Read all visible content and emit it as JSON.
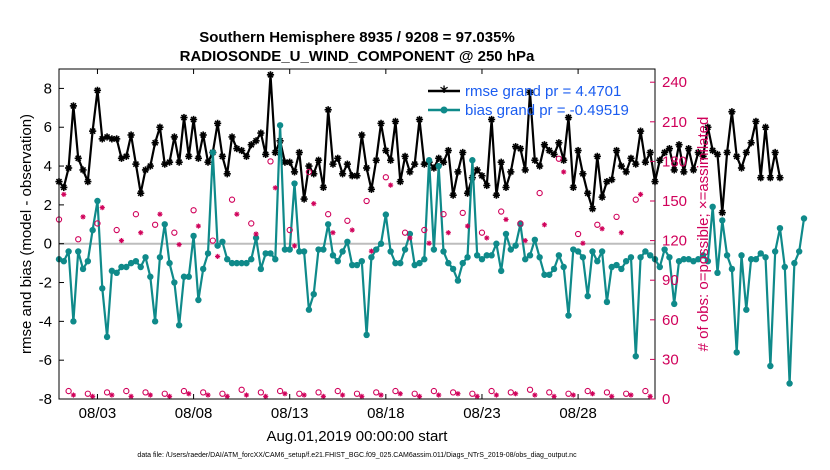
{
  "chart_data": {
    "type": "line",
    "title": "Southern Hemisphere 8935 / 9208 = 97.035%",
    "subtitle": "RADIOSONDE_U_WIND_COMPONENT @ 250 hPa",
    "xlabel": "Aug.01,2019 00:00:00 start",
    "ylabel": "rmse and bias (model - observation)",
    "ylabel_right": "# of obs: o=possible; ×=assimilated",
    "footnote": "data file: /Users/raeder/DAI/ATM_forcXX/CAM6_setup/f.e21.FHIST_BGC.f09_025.CAM6assim.011/Diags_NTrS_2019-08/obs_diag_output.nc",
    "xlim": [
      1.0,
      32.0
    ],
    "ylim": [
      -8,
      9
    ],
    "ylim_right": [
      0,
      250
    ],
    "y_ticks": [
      "8",
      "6",
      "4",
      "2",
      "0",
      "-2",
      "-4",
      "-6",
      "-8"
    ],
    "y_tick_values": [
      8,
      6,
      4,
      2,
      0,
      -2,
      -4,
      -6,
      -8
    ],
    "y_ticks_right": [
      "240",
      "210",
      "180",
      "150",
      "120",
      "90",
      "60",
      "30",
      "0"
    ],
    "y_tick_values_right": [
      240,
      210,
      180,
      150,
      120,
      90,
      60,
      30,
      0
    ],
    "x_ticks": [
      "08/03",
      "08/08",
      "08/13",
      "08/18",
      "08/23",
      "08/28"
    ],
    "x_tick_values": [
      3,
      8,
      13,
      18,
      23,
      28
    ],
    "legend": [
      "rmse grand pr = 4.4701",
      "bias grand pr = -0.49519"
    ],
    "legend_position": "top-right",
    "zero_line": 0,
    "series": [
      {
        "name": "rmse grand pr = 4.4701",
        "color": "#000000",
        "marker": "asterisk",
        "x_start": 1.0,
        "x_step": 0.25,
        "values": [
          3.2,
          2.9,
          3.9,
          7.1,
          4.4,
          3.8,
          3.2,
          5.8,
          7.9,
          5.4,
          5.5,
          5.4,
          5.4,
          4.4,
          4.5,
          5.6,
          4.1,
          2.6,
          3.8,
          4.0,
          5.2,
          6.0,
          4.1,
          4.2,
          5.5,
          4.2,
          6.5,
          4.5,
          6.4,
          4.4,
          5.6,
          4.2,
          4.7,
          6.2,
          4.5,
          3.6,
          5.5,
          4.9,
          4.8,
          4.5,
          5.1,
          5.3,
          5.7,
          4.6,
          8.7,
          4.7,
          5.3,
          4.2,
          4.2,
          3.7,
          4.7,
          2.3,
          4.0,
          3.6,
          4.3,
          2.9,
          6.9,
          4.1,
          4.4,
          3.6,
          4.1,
          3.5,
          3.5,
          5.6,
          3.9,
          2.8,
          4.3,
          6.2,
          4.8,
          4.3,
          6.3,
          3.2,
          4.5,
          3.7,
          4.1,
          6.4,
          4.1,
          4.2,
          3.9,
          4.4,
          4.2,
          4.8,
          2.5,
          3.7,
          4.7,
          2.6,
          3.4,
          3.8,
          3.5,
          3.0,
          6.4,
          2.5,
          4.2,
          2.9,
          3.7,
          5.0,
          4.9,
          3.8,
          7.8,
          4.3,
          4.0,
          5.1,
          4.8,
          4.6,
          5.2,
          4.3,
          6.5,
          2.9,
          4.8,
          3.6,
          2.6,
          1.8,
          4.5,
          2.4,
          3.2,
          3.3,
          4.8,
          4.0,
          3.7,
          4.4,
          4.1,
          5.8,
          4.2,
          4.7,
          3.2,
          4.3,
          4.7,
          4.9,
          3.8,
          5.1,
          3.7,
          4.9,
          3.8,
          4.7,
          4.5,
          6.0,
          4.8,
          4.6,
          1.6,
          4.7,
          6.8,
          4.5,
          3.9,
          4.7,
          5.2,
          6.3,
          3.4,
          6.0,
          3.4,
          4.7,
          3.4
        ]
      },
      {
        "name": "bias grand pr = -0.49519",
        "color": "#0f8a8a",
        "marker": "dot",
        "x_start": 1.0,
        "x_step": 0.25,
        "values": [
          -0.8,
          -0.9,
          -0.4,
          -4.0,
          -0.4,
          -1.3,
          -0.9,
          0.7,
          2.2,
          -2.3,
          -4.8,
          -1.4,
          -1.5,
          -1.2,
          -1.2,
          -1.0,
          -0.9,
          -1.2,
          -0.7,
          -1.7,
          -4.0,
          -0.7,
          1.0,
          -1.0,
          -2.0,
          -4.2,
          -1.7,
          -1.7,
          0.4,
          -2.9,
          -1.3,
          -0.5,
          4.7,
          -0.1,
          0.1,
          -0.8,
          -1.0,
          -1.0,
          -1.0,
          -1.0,
          -0.8,
          0.3,
          -1.3,
          -0.5,
          -0.5,
          -0.8,
          6.1,
          -0.3,
          -0.3,
          3.1,
          -0.4,
          -0.4,
          -3.4,
          -2.6,
          -0.3,
          -0.3,
          1.0,
          -0.6,
          -0.9,
          -0.4,
          0.1,
          -1.1,
          -1.1,
          -0.9,
          -4.7,
          -0.7,
          -0.3,
          0.0,
          1.5,
          -0.4,
          -1.0,
          -1.0,
          -0.3,
          0.5,
          -1.1,
          -1.0,
          -0.8,
          4.3,
          -0.3,
          4.0,
          -0.4,
          -1.0,
          -1.3,
          -1.9,
          -1.0,
          -0.7,
          4.3,
          -0.6,
          -0.8,
          -0.6,
          -0.6,
          0.0,
          -1.4,
          0.5,
          -0.3,
          -0.1,
          1.0,
          -0.8,
          -0.6,
          0.2,
          -0.7,
          -1.6,
          -1.6,
          -1.3,
          -0.6,
          -1.2,
          -3.7,
          -0.3,
          -0.4,
          -0.7,
          -2.7,
          -0.4,
          -0.9,
          -0.4,
          -3.0,
          -1.2,
          -1.1,
          -1.3,
          -0.9,
          -0.7,
          -5.8,
          -0.7,
          -0.4,
          -0.6,
          -0.8,
          -1.2,
          -0.3,
          -0.7,
          -3.1,
          -0.9,
          -0.8,
          -0.8,
          -0.9,
          -0.8,
          -0.6,
          -0.9,
          1.9,
          -1.5,
          1.2,
          -0.6,
          -1.3,
          -5.6,
          -0.6,
          -3.4,
          -0.8,
          -0.8,
          -0.5,
          -0.7,
          -6.3,
          -0.4,
          0.8,
          -1.2,
          -7.2,
          -1.0,
          -0.4,
          1.3
        ]
      },
      {
        "name": "possible obs",
        "color": "#d0005a",
        "marker": "circle",
        "axis": "right",
        "x_start": 1.0,
        "x_step": 0.5,
        "values": [
          136,
          6,
          121,
          4,
          133,
          5,
          128,
          6,
          140,
          5,
          132,
          4,
          126,
          6,
          143,
          5,
          120,
          4,
          151,
          7,
          133,
          5,
          180,
          6,
          128,
          4,
          172,
          5,
          140,
          6,
          135,
          4,
          150,
          5,
          168,
          6,
          126,
          4,
          128,
          6,
          140,
          5,
          141,
          4,
          126,
          6,
          142,
          5,
          133,
          7,
          156,
          5,
          182,
          4,
          125,
          6,
          132,
          5,
          138,
          4,
          151,
          6
        ]
      },
      {
        "name": "assimilated obs",
        "color": "#d0005a",
        "marker": "x",
        "axis": "right",
        "x_start": 1.25,
        "x_step": 0.5,
        "values": [
          155,
          3,
          138,
          2,
          145,
          3,
          120,
          2,
          126,
          3,
          140,
          2,
          117,
          4,
          131,
          3,
          108,
          2,
          140,
          3,
          125,
          2,
          160,
          4,
          116,
          3,
          148,
          2,
          126,
          3,
          128,
          2,
          112,
          3,
          162,
          4,
          122,
          2,
          118,
          3,
          126,
          4,
          131,
          2,
          122,
          3,
          136,
          4,
          120,
          3,
          132,
          2,
          172,
          3,
          118,
          4,
          129,
          2,
          126,
          3,
          155,
          2
        ]
      }
    ]
  },
  "colors": {
    "rmse": "#000000",
    "bias": "#0f8a8a",
    "obs": "#d0005a",
    "legend_text": "#1a5cf0",
    "zero_line": "#bdbdbd"
  }
}
